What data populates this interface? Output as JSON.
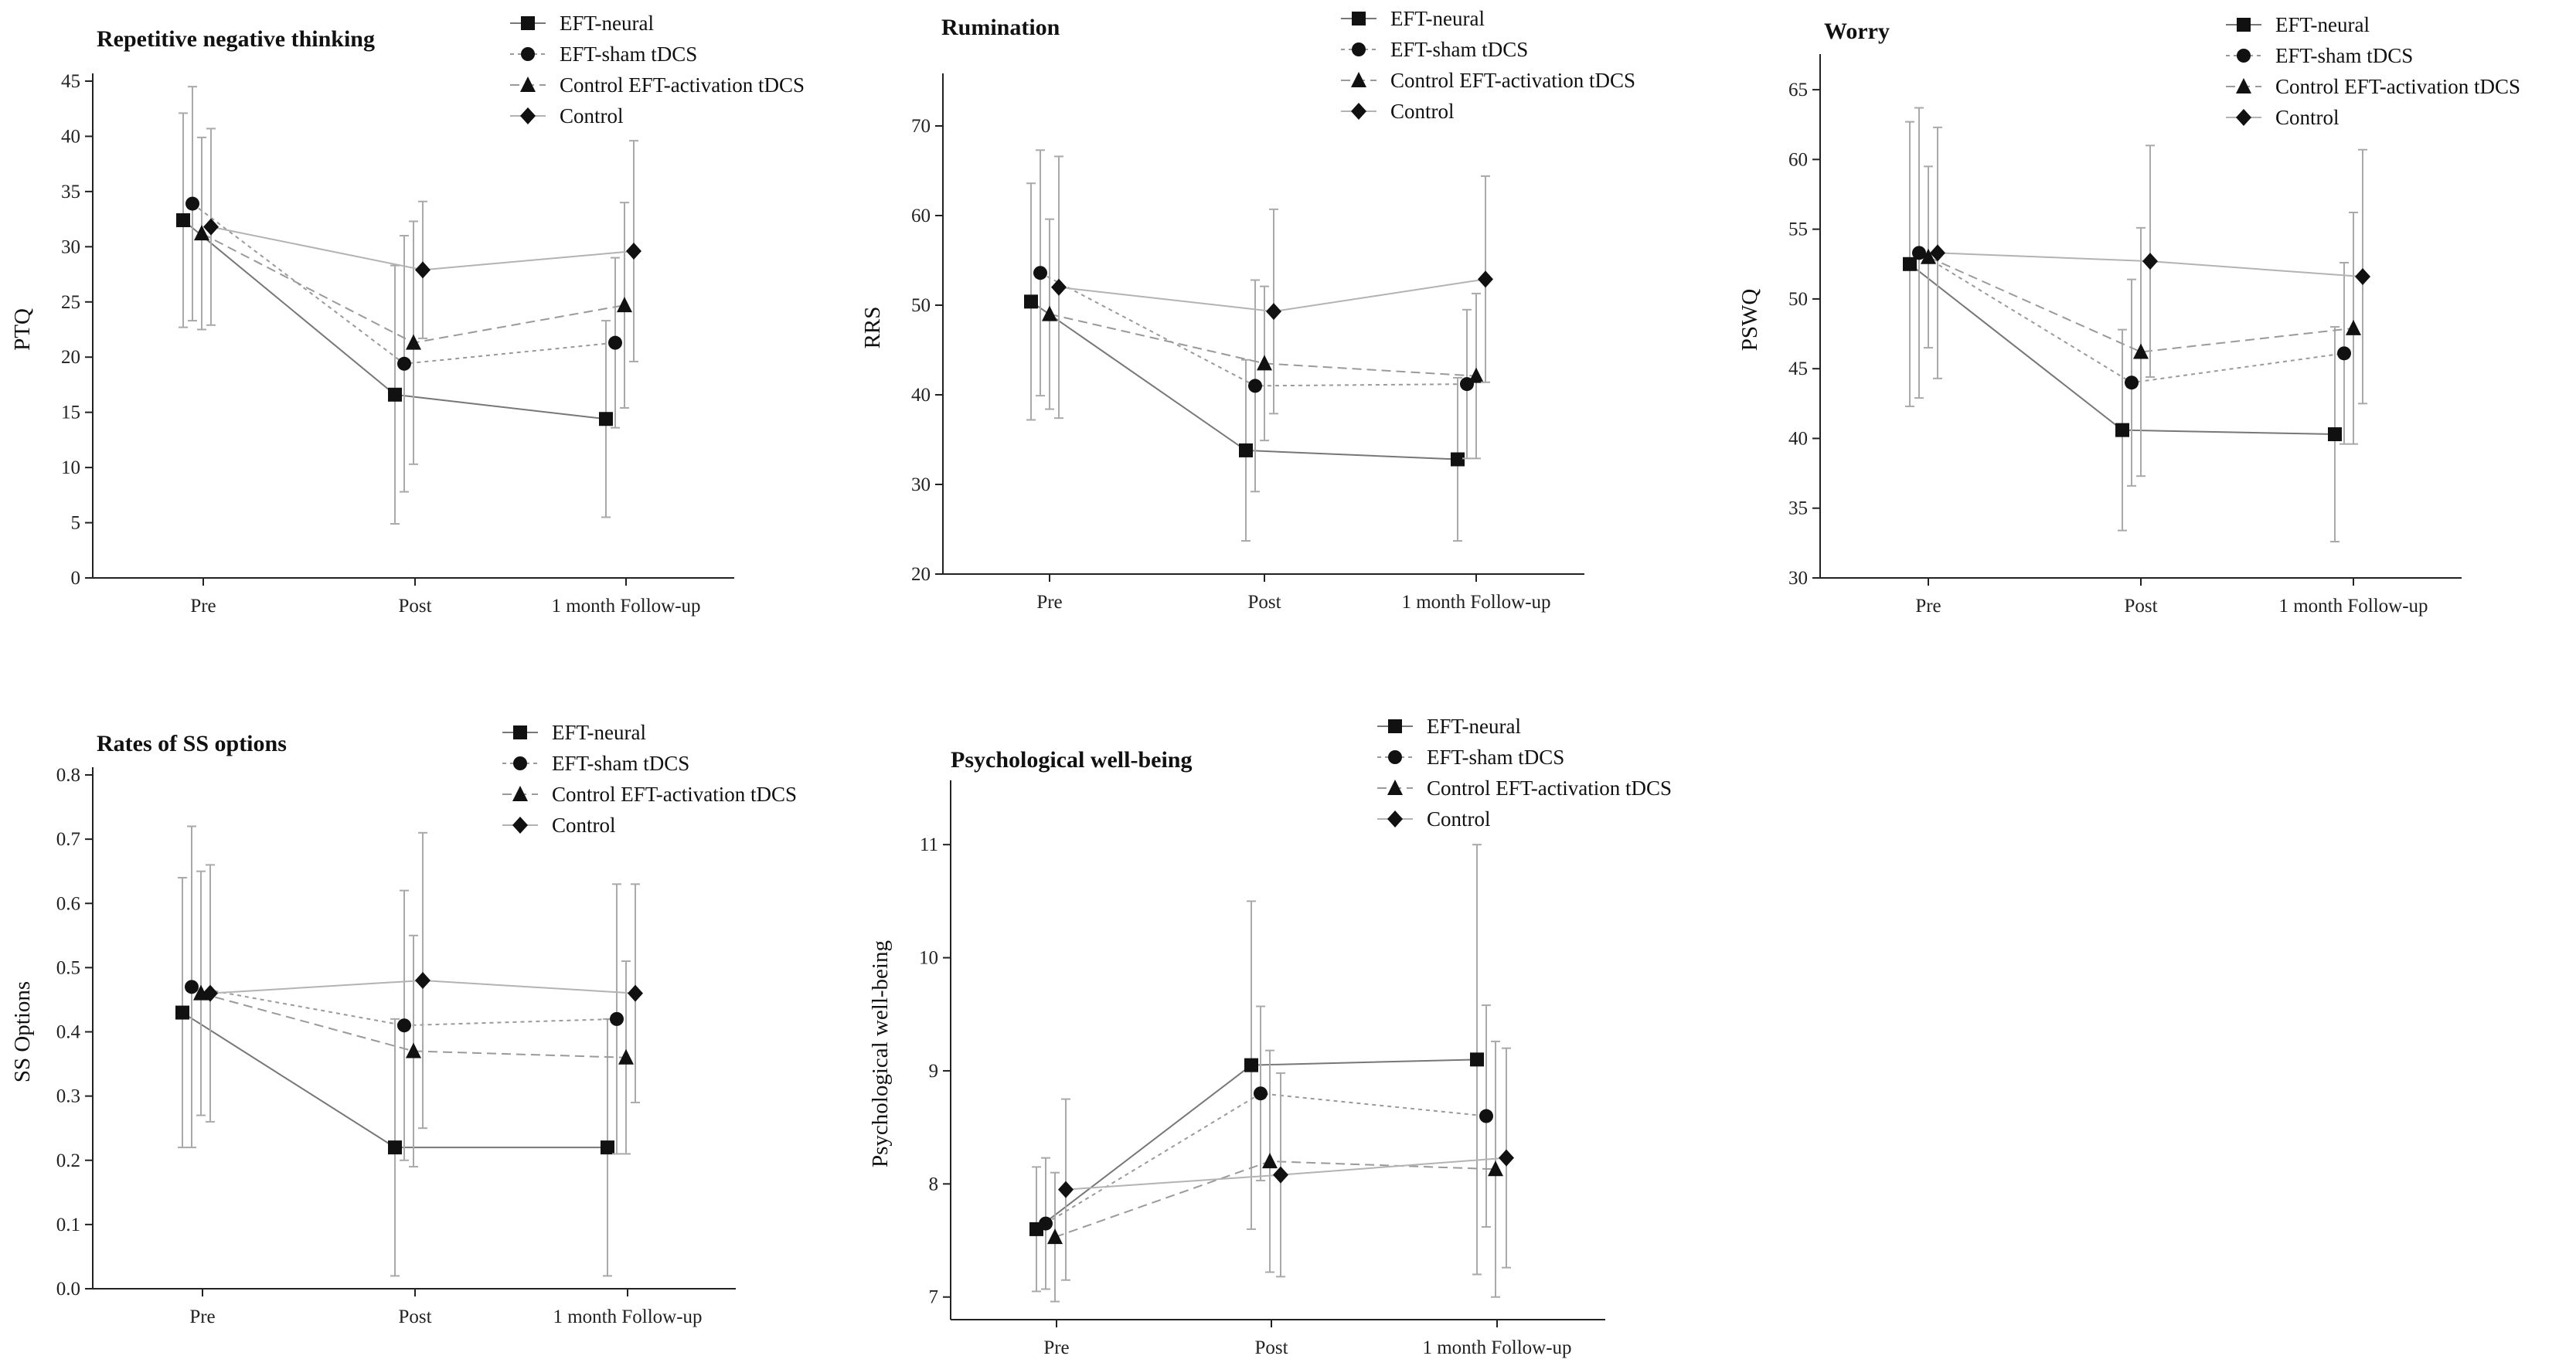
{
  "chart_data": [
    {
      "type": "line",
      "title": "Repetitive negative thinking",
      "ylabel": "PTQ",
      "xlabel": "",
      "categories": [
        "Pre",
        "Post",
        "1 month Follow-up"
      ],
      "ylim": [
        0,
        45
      ],
      "yticks": [
        0,
        5,
        10,
        15,
        20,
        25,
        30,
        35,
        40,
        45
      ],
      "legend": "top-right",
      "grid": false,
      "series": [
        {
          "name": "EFT-neural",
          "values": [
            32.4,
            16.6,
            14.4
          ],
          "err": [
            9.7,
            11.7,
            8.9
          ]
        },
        {
          "name": "EFT-sham tDCS",
          "values": [
            33.9,
            19.4,
            21.3
          ],
          "err": [
            10.6,
            11.6,
            7.7
          ]
        },
        {
          "name": "Control EFT-activation tDCS",
          "values": [
            31.2,
            21.3,
            24.7
          ],
          "err": [
            8.7,
            11.0,
            9.3
          ]
        },
        {
          "name": "Control",
          "values": [
            31.8,
            27.9,
            29.6
          ],
          "err": [
            8.9,
            6.2,
            10.0
          ]
        }
      ]
    },
    {
      "type": "line",
      "title": "Rumination",
      "ylabel": "RRS",
      "xlabel": "",
      "categories": [
        "Pre",
        "Post",
        "1 month Follow-up"
      ],
      "ylim": [
        20,
        75
      ],
      "yticks": [
        20,
        30,
        40,
        50,
        60,
        70
      ],
      "legend": "top-right",
      "grid": false,
      "series": [
        {
          "name": "EFT-neural",
          "values": [
            50.4,
            33.8,
            32.8
          ],
          "err": [
            13.2,
            10.1,
            9.1
          ]
        },
        {
          "name": "EFT-sham tDCS",
          "values": [
            53.6,
            41.0,
            41.2
          ],
          "err": [
            13.7,
            11.8,
            8.3
          ]
        },
        {
          "name": "Control EFT-activation tDCS",
          "values": [
            49.0,
            43.5,
            42.1
          ],
          "err": [
            10.6,
            8.6,
            9.2
          ]
        },
        {
          "name": "Control",
          "values": [
            52.0,
            49.3,
            52.9
          ],
          "err": [
            14.6,
            11.4,
            11.5
          ]
        }
      ]
    },
    {
      "type": "line",
      "title": "Worry",
      "ylabel": "PSWQ",
      "xlabel": "",
      "categories": [
        "Pre",
        "Post",
        "1 month Follow-up"
      ],
      "ylim": [
        30,
        67
      ],
      "yticks": [
        30,
        35,
        40,
        45,
        50,
        55,
        60,
        65
      ],
      "legend": "top-right",
      "grid": false,
      "series": [
        {
          "name": "EFT-neural",
          "values": [
            52.5,
            40.6,
            40.3
          ],
          "err": [
            10.2,
            7.2,
            7.7
          ]
        },
        {
          "name": "EFT-sham tDCS",
          "values": [
            53.3,
            44.0,
            46.1
          ],
          "err": [
            10.4,
            7.4,
            6.5
          ]
        },
        {
          "name": "Control EFT-activation tDCS",
          "values": [
            53.0,
            46.2,
            47.9
          ],
          "err": [
            6.5,
            8.9,
            8.3
          ]
        },
        {
          "name": "Control",
          "values": [
            53.3,
            52.7,
            51.6
          ],
          "err": [
            9.0,
            8.3,
            9.1
          ]
        }
      ]
    },
    {
      "type": "line",
      "title": "Rates of SS options",
      "ylabel": "SS Options",
      "xlabel": "",
      "categories": [
        "Pre",
        "Post",
        "1 month Follow-up"
      ],
      "ylim": [
        0,
        0.8
      ],
      "yticks": [
        0.0,
        0.1,
        0.2,
        0.3,
        0.4,
        0.5,
        0.6,
        0.7,
        0.8
      ],
      "legend": "top-right",
      "grid": false,
      "series": [
        {
          "name": "EFT-neural",
          "values": [
            0.43,
            0.22,
            0.22
          ],
          "err": [
            0.21,
            0.2,
            0.2
          ]
        },
        {
          "name": "EFT-sham tDCS",
          "values": [
            0.47,
            0.41,
            0.42
          ],
          "err": [
            0.25,
            0.21,
            0.21
          ]
        },
        {
          "name": "Control EFT-activation tDCS",
          "values": [
            0.46,
            0.37,
            0.36
          ],
          "err": [
            0.19,
            0.18,
            0.15
          ]
        },
        {
          "name": "Control",
          "values": [
            0.46,
            0.48,
            0.46
          ],
          "err": [
            0.2,
            0.23,
            0.17
          ]
        }
      ]
    },
    {
      "type": "line",
      "title": "Psychological well-being",
      "ylabel": "Psychological well-being",
      "xlabel": "",
      "categories": [
        "Pre",
        "Post",
        "1 month Follow-up"
      ],
      "ylim": [
        6.8,
        11.5
      ],
      "yticks": [
        7,
        8,
        9,
        10,
        11
      ],
      "legend": "top-right",
      "grid": false,
      "series": [
        {
          "name": "EFT-neural",
          "values": [
            7.6,
            9.05,
            9.1
          ],
          "err": [
            0.55,
            1.45,
            1.9
          ]
        },
        {
          "name": "EFT-sham tDCS",
          "values": [
            7.65,
            8.8,
            8.6
          ],
          "err": [
            0.58,
            0.77,
            0.98
          ]
        },
        {
          "name": "Control EFT-activation tDCS",
          "values": [
            7.53,
            8.2,
            8.13
          ],
          "err": [
            0.57,
            0.98,
            1.13
          ]
        },
        {
          "name": "Control",
          "values": [
            7.95,
            8.08,
            8.23
          ],
          "err": [
            0.8,
            0.9,
            0.97
          ]
        }
      ]
    }
  ]
}
